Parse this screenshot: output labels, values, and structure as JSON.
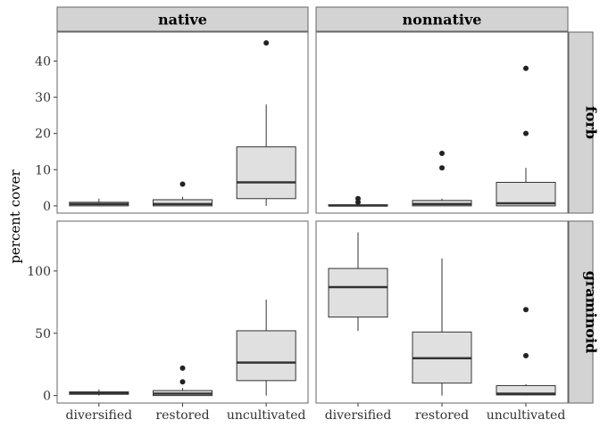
{
  "chart_data": {
    "type": "boxplot",
    "ylabel": "percent cover",
    "xlabel": "",
    "categories": [
      "diversified",
      "restored",
      "uncultivated"
    ],
    "columns": [
      "native",
      "nonnative"
    ],
    "rows": [
      {
        "label": "forb",
        "ylim": [
          -2,
          48
        ],
        "yticks": [
          0,
          10,
          20,
          30,
          40
        ]
      },
      {
        "label": "graminoid",
        "ylim": [
          -6,
          140
        ],
        "yticks": [
          0,
          50,
          100
        ]
      }
    ],
    "panels": [
      {
        "row": "forb",
        "column": "native",
        "boxes": [
          {
            "category": "diversified",
            "whisker_low": 0,
            "q1": 0,
            "median": 0.5,
            "q3": 1,
            "whisker_high": 2,
            "outliers": []
          },
          {
            "category": "restored",
            "whisker_low": 0,
            "q1": 0,
            "median": 0.5,
            "q3": 1.7,
            "whisker_high": 2.5,
            "outliers": [
              6
            ]
          },
          {
            "category": "uncultivated",
            "whisker_low": 0,
            "q1": 2,
            "median": 6.5,
            "q3": 16.3,
            "whisker_high": 28,
            "outliers": [
              45
            ]
          }
        ]
      },
      {
        "row": "forb",
        "column": "nonnative",
        "boxes": [
          {
            "category": "diversified",
            "whisker_low": 0,
            "q1": 0,
            "median": 0.1,
            "q3": 0.3,
            "whisker_high": 0.5,
            "outliers": [
              1,
              2
            ]
          },
          {
            "category": "restored",
            "whisker_low": 0,
            "q1": 0,
            "median": 0.5,
            "q3": 1.5,
            "whisker_high": 2,
            "outliers": [
              10.5,
              14.5
            ]
          },
          {
            "category": "uncultivated",
            "whisker_low": 0,
            "q1": 0,
            "median": 0.7,
            "q3": 6.5,
            "whisker_high": 10.5,
            "outliers": [
              20,
              38
            ]
          }
        ]
      },
      {
        "row": "graminoid",
        "column": "native",
        "boxes": [
          {
            "category": "diversified",
            "whisker_low": 0,
            "q1": 1,
            "median": 2,
            "q3": 3,
            "whisker_high": 5,
            "outliers": []
          },
          {
            "category": "restored",
            "whisker_low": 0,
            "q1": 0,
            "median": 1.5,
            "q3": 4,
            "whisker_high": 6,
            "outliers": [
              11,
              22
            ]
          },
          {
            "category": "uncultivated",
            "whisker_low": 0,
            "q1": 12,
            "median": 26.5,
            "q3": 52,
            "whisker_high": 77,
            "outliers": []
          }
        ]
      },
      {
        "row": "graminoid",
        "column": "nonnative",
        "boxes": [
          {
            "category": "diversified",
            "whisker_low": 52,
            "q1": 63,
            "median": 87,
            "q3": 102,
            "whisker_high": 131,
            "outliers": []
          },
          {
            "category": "restored",
            "whisker_low": 0,
            "q1": 10,
            "median": 30,
            "q3": 51,
            "whisker_high": 110,
            "outliers": []
          },
          {
            "category": "uncultivated",
            "whisker_low": 0,
            "q1": 0.5,
            "median": 1.5,
            "q3": 8,
            "whisker_high": 9,
            "outliers": [
              32,
              69
            ]
          }
        ]
      }
    ],
    "colors": {
      "box_fill": "#e0e0e0",
      "strip_fill": "#d3d3d3",
      "line": "#333333",
      "border": "#666666",
      "point": "#222222",
      "text": "#333333"
    }
  }
}
